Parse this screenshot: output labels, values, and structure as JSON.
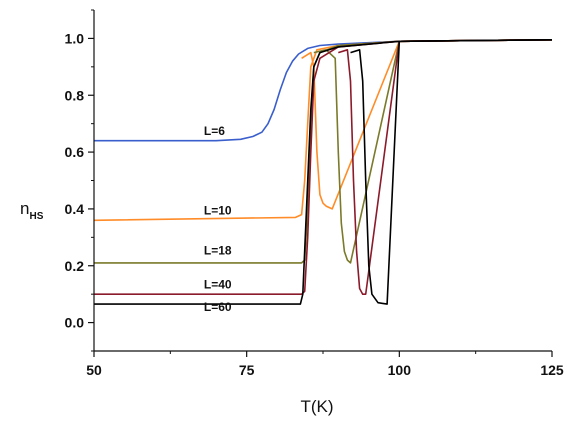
{
  "chart_data": {
    "type": "line",
    "title": "",
    "xlabel": "T(K)",
    "ylabel_main": "n",
    "ylabel_sub": "HS",
    "xlim": [
      50,
      125
    ],
    "ylim": [
      -0.1,
      1.1
    ],
    "xticks": [
      50,
      75,
      100,
      125
    ],
    "xtick_labels": [
      "50",
      "75",
      "100",
      "125"
    ],
    "yticks": [
      0.0,
      0.2,
      0.4,
      0.6,
      0.8,
      1.0
    ],
    "ytick_labels": [
      "0.0",
      "0.2",
      "0.4",
      "0.6",
      "0.8",
      "1.0"
    ],
    "grid": false,
    "series": [
      {
        "name": "L=6",
        "color": "#3a5fcd",
        "label_at": [
          68,
          0.66
        ],
        "x": [
          50,
          70,
          74,
          76,
          77.5,
          78.5,
          79.5,
          80.5,
          81.5,
          82.5,
          83.5,
          85,
          87,
          90,
          95,
          100,
          110,
          125
        ],
        "y": [
          0.64,
          0.64,
          0.645,
          0.655,
          0.67,
          0.7,
          0.75,
          0.82,
          0.88,
          0.92,
          0.945,
          0.965,
          0.975,
          0.98,
          0.985,
          0.99,
          0.992,
          0.995
        ]
      },
      {
        "name": "L=10",
        "color": "#ff8c28",
        "label_at": [
          68,
          0.38
        ],
        "x": [
          50,
          83,
          84,
          84.5,
          85,
          85.5,
          86.5,
          90,
          100,
          125
        ],
        "y": [
          0.36,
          0.37,
          0.38,
          0.5,
          0.7,
          0.9,
          0.96,
          0.975,
          0.99,
          0.995
        ],
        "return_x": [
          84,
          85.5,
          86,
          86.5,
          87,
          87.5,
          88,
          89,
          100,
          125
        ],
        "return_y": [
          0.93,
          0.95,
          0.9,
          0.6,
          0.45,
          0.42,
          0.41,
          0.4,
          0.99,
          0.995
        ]
      },
      {
        "name": "L=18",
        "color": "#7a7a2a",
        "label_at": [
          68,
          0.24
        ],
        "x": [
          50,
          84,
          84.5,
          85,
          85.5,
          86,
          87,
          90,
          100,
          125
        ],
        "y": [
          0.21,
          0.21,
          0.22,
          0.4,
          0.7,
          0.9,
          0.95,
          0.975,
          0.99,
          0.995
        ],
        "return_x": [
          86,
          88,
          89.5,
          90,
          90.5,
          91,
          91.5,
          92,
          100,
          125
        ],
        "return_y": [
          0.95,
          0.96,
          0.93,
          0.6,
          0.35,
          0.25,
          0.22,
          0.21,
          0.99,
          0.995
        ]
      },
      {
        "name": "L=40",
        "color": "#8b1a2a",
        "label_at": [
          68,
          0.12
        ],
        "x": [
          50,
          84,
          84.5,
          85,
          85.5,
          86,
          87,
          90,
          100,
          125
        ],
        "y": [
          0.1,
          0.1,
          0.11,
          0.3,
          0.6,
          0.85,
          0.93,
          0.97,
          0.99,
          0.995
        ],
        "return_x": [
          90,
          91.5,
          92,
          92.5,
          93,
          93.5,
          94,
          94.5,
          100,
          125
        ],
        "return_y": [
          0.95,
          0.96,
          0.85,
          0.5,
          0.25,
          0.12,
          0.1,
          0.1,
          0.99,
          0.995
        ]
      },
      {
        "name": "L=60",
        "color": "#000000",
        "label_at": [
          68,
          0.04
        ],
        "x": [
          50,
          83.8,
          84.2,
          84.8,
          85.5,
          86,
          87,
          90,
          100,
          125
        ],
        "y": [
          0.065,
          0.065,
          0.1,
          0.4,
          0.75,
          0.9,
          0.95,
          0.97,
          0.99,
          0.995
        ],
        "return_x": [
          92,
          93.5,
          94,
          94.5,
          95,
          95.5,
          96.5,
          98,
          100,
          125
        ],
        "return_y": [
          0.95,
          0.96,
          0.85,
          0.5,
          0.2,
          0.1,
          0.07,
          0.065,
          0.99,
          0.995
        ]
      }
    ]
  }
}
